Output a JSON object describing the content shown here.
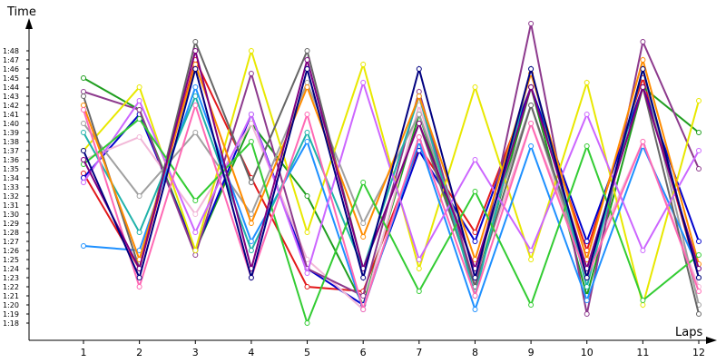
{
  "chart_data": {
    "type": "line",
    "title": "",
    "xlabel": "Laps",
    "ylabel": "Time",
    "x": [
      1,
      2,
      3,
      4,
      5,
      6,
      7,
      8,
      9,
      10,
      11,
      12
    ],
    "x_tick_labels": [
      "1",
      "2",
      "3",
      "4",
      "5",
      "6",
      "7",
      "8",
      "9",
      "10",
      "11",
      "12"
    ],
    "y_unit": "seconds",
    "ylim": [
      75,
      116
    ],
    "y_tick_labels": [
      "1:18",
      "1:19",
      "1:20",
      "1:21",
      "1:22",
      "1:23",
      "1:24",
      "1:25",
      "1:26",
      "1:27",
      "1:28",
      "1:29",
      "1:30",
      "1:31",
      "1:32",
      "1:33",
      "1:34",
      "1:35",
      "1:36",
      "1:37",
      "1:38",
      "1:39",
      "1:40",
      "1:41",
      "1:42",
      "1:43",
      "1:44",
      "1:45",
      "1:46",
      "1:47",
      "1:48"
    ],
    "y_tick_values": [
      78,
      79,
      80,
      81,
      82,
      83,
      84,
      85,
      86,
      87,
      88,
      89,
      90,
      91,
      92,
      93,
      94,
      95,
      96,
      97,
      98,
      99,
      100,
      101,
      102,
      103,
      104,
      105,
      106,
      107,
      108
    ],
    "grid": false,
    "series": [
      {
        "color": "#e31a1c",
        "values": [
          94.5,
          84.0,
          107.0,
          94.0,
          82.0,
          81.5,
          97.5,
          88.0,
          104.0,
          86.0,
          105.0,
          83.0
        ]
      },
      {
        "color": "#1f9e1f",
        "values": [
          105.0,
          101.5,
          86.0,
          100.0,
          92.0,
          80.0,
          101.0,
          82.0,
          104.0,
          81.0,
          104.0,
          99.0
        ]
      },
      {
        "color": "#0000cc",
        "values": [
          94.0,
          101.0,
          86.0,
          101.0,
          84.0,
          80.0,
          97.0,
          87.0,
          104.0,
          87.0,
          104.0,
          87.0
        ]
      },
      {
        "color": "#f2b8d8",
        "values": [
          96.0,
          98.5,
          90.0,
          100.0,
          85.0,
          79.5,
          102.0,
          82.5,
          100.0,
          84.0,
          98.0,
          82.0
        ]
      },
      {
        "color": "#8d3a8d",
        "values": [
          103.5,
          101.5,
          85.5,
          105.5,
          84.0,
          81.0,
          103.5,
          82.0,
          111.0,
          79.0,
          109.0,
          95.0
        ]
      },
      {
        "color": "#a0a0a0",
        "values": [
          100.0,
          92.0,
          99.0,
          90.0,
          104.5,
          89.0,
          101.0,
          84.0,
          102.0,
          83.0,
          106.0,
          80.0
        ]
      },
      {
        "color": "#e8e800",
        "values": [
          97.0,
          104.0,
          86.0,
          108.0,
          88.0,
          106.5,
          84.0,
          104.0,
          85.0,
          104.5,
          80.0,
          102.5
        ]
      },
      {
        "color": "#1e90ff",
        "values": [
          86.5,
          86.0,
          104.0,
          87.0,
          98.0,
          79.5,
          98.0,
          79.5,
          97.5,
          80.5,
          97.5,
          84.0
        ]
      },
      {
        "color": "#666666",
        "values": [
          103.0,
          84.0,
          109.0,
          93.5,
          108.0,
          84.0,
          100.0,
          82.0,
          102.0,
          84.0,
          104.0,
          79.0
        ]
      },
      {
        "color": "#20b2aa",
        "values": [
          99.0,
          88.0,
          103.0,
          86.0,
          99.0,
          84.0,
          103.0,
          81.0,
          106.0,
          82.0,
          106.0,
          83.0
        ]
      },
      {
        "color": "#cc66ff",
        "values": [
          93.5,
          102.5,
          88.0,
          101.0,
          83.5,
          104.5,
          85.0,
          96.0,
          86.0,
          101.0,
          86.0,
          97.0
        ]
      },
      {
        "color": "#ff8c00",
        "values": [
          102.0,
          85.0,
          106.5,
          89.0,
          104.0,
          87.5,
          103.0,
          85.0,
          105.5,
          85.0,
          107.0,
          84.5
        ]
      },
      {
        "color": "#33cc33",
        "values": [
          95.5,
          100.5,
          91.5,
          98.0,
          78.0,
          93.5,
          81.5,
          92.5,
          80.0,
          97.5,
          80.5,
          85.5
        ]
      },
      {
        "color": "#ff69b4",
        "values": [
          101.5,
          82.0,
          102.0,
          83.0,
          101.0,
          79.5,
          98.5,
          81.0,
          100.0,
          83.0,
          98.0,
          81.5
        ]
      },
      {
        "color": "#800080",
        "values": [
          96.0,
          84.0,
          108.0,
          84.0,
          107.0,
          84.0,
          100.0,
          84.0,
          104.0,
          84.0,
          104.0,
          84.0
        ]
      },
      {
        "color": "#000080",
        "values": [
          97.0,
          83.0,
          106.0,
          83.0,
          106.0,
          83.0,
          106.0,
          83.0,
          106.0,
          83.0,
          106.0,
          83.0
        ]
      }
    ]
  }
}
